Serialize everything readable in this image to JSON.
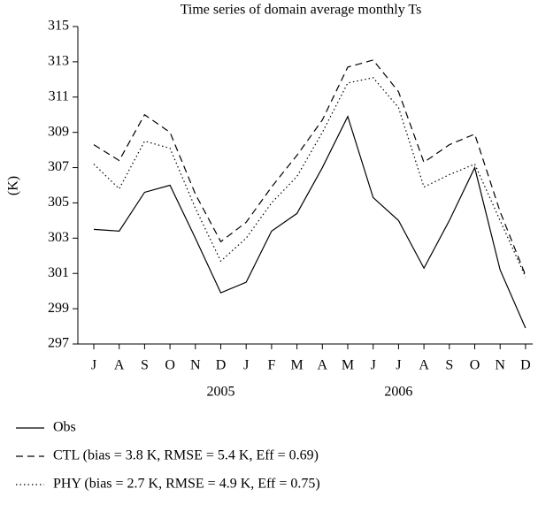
{
  "chart_data": {
    "type": "line",
    "title": "Time series of domain average monthly Ts",
    "y_label": "(K)",
    "categories": [
      "J",
      "A",
      "S",
      "O",
      "N",
      "D",
      "J",
      "F",
      "M",
      "A",
      "M",
      "J",
      "J",
      "A",
      "S",
      "O",
      "N",
      "D"
    ],
    "year_labels": [
      "2005",
      "2006"
    ],
    "series": [
      {
        "name": "Obs",
        "color": "#000000",
        "dash": "solid",
        "values": [
          303.5,
          303.4,
          305.6,
          306.0,
          303.0,
          299.9,
          300.5,
          303.4,
          304.4,
          307.0,
          309.9,
          305.3,
          304.0,
          301.3,
          304.0,
          307.0,
          301.2,
          297.9
        ]
      },
      {
        "name": "CTL (bias = 3.8 K, RMSE = 5.4 K, Eff = 0.69)",
        "color": "#000000",
        "dash": "dashed",
        "values": [
          308.3,
          307.4,
          310.0,
          309.0,
          305.5,
          302.8,
          303.9,
          305.9,
          307.7,
          309.7,
          312.7,
          313.1,
          311.3,
          307.3,
          308.3,
          308.9,
          304.5,
          300.9
        ]
      },
      {
        "name": "PHY (bias = 2.7 K, RMSE = 4.9 K, Eff = 0.75)",
        "color": "#000000",
        "dash": "dotted",
        "values": [
          307.2,
          305.8,
          308.5,
          308.1,
          304.7,
          301.7,
          303.0,
          305.0,
          306.5,
          309.0,
          311.8,
          312.1,
          310.4,
          305.9,
          306.6,
          307.2,
          304.0,
          300.8
        ]
      }
    ],
    "ylim": [
      297,
      315
    ],
    "yticks": [
      297,
      299,
      301,
      303,
      305,
      307,
      309,
      311,
      313,
      315
    ],
    "grid": false
  }
}
